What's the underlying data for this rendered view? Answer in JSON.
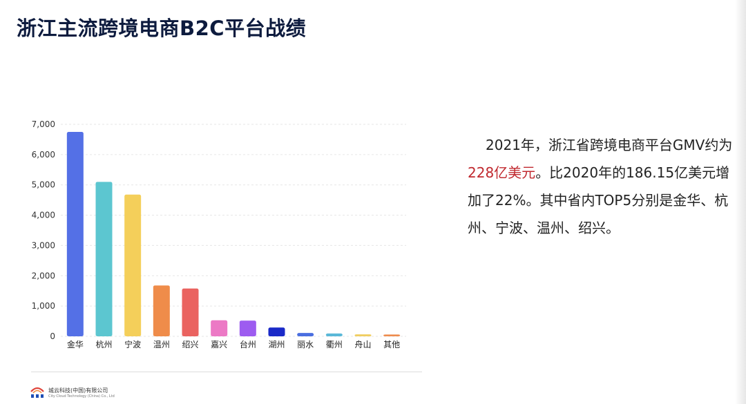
{
  "page": {
    "title": "浙江主流跨境电商B2C平台战绩"
  },
  "summary": {
    "part1": "2021年，浙江省跨境电商平台GMV约为",
    "highlight": "228亿美元",
    "part2": "。比2020年的186.15亿美元增加了22%。其中省内TOP5分别是金华、杭州、宁波、温州、绍兴。",
    "highlight_color": "#c0282e"
  },
  "footer": {
    "company": "城云科技(中国)有限公司",
    "company_en": "City Cloud Technology (China) Co., Ltd"
  },
  "chart_data": {
    "type": "bar",
    "title": "",
    "xlabel": "",
    "ylabel": "",
    "categories": [
      "金华",
      "杭州",
      "宁波",
      "温州",
      "绍兴",
      "嘉兴",
      "台州",
      "湖州",
      "丽水",
      "衢州",
      "舟山",
      "其他"
    ],
    "values": [
      6750,
      5100,
      4680,
      1680,
      1580,
      530,
      520,
      290,
      110,
      95,
      65,
      60
    ],
    "colors": [
      "#5470e6",
      "#5cc6d0",
      "#f4cf5a",
      "#ef8c4a",
      "#ea6360",
      "#ec79c5",
      "#9d5cf0",
      "#1a2ac8",
      "#4a6ee0",
      "#5ab8d8",
      "#f0ce62",
      "#ee8c4e"
    ],
    "ylim": [
      0,
      7000
    ],
    "yticks": [
      0,
      1000,
      2000,
      3000,
      4000,
      5000,
      6000,
      7000
    ],
    "ytick_labels": [
      "0",
      "1,000",
      "2,000",
      "3,000",
      "4,000",
      "5,000",
      "6,000",
      "7,000"
    ],
    "grid": true,
    "legend": "none"
  }
}
